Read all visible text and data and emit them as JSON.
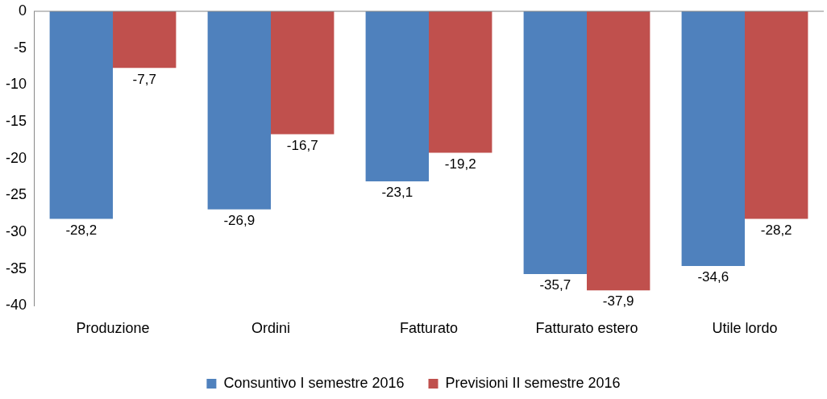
{
  "chart_data": {
    "type": "bar",
    "categories": [
      "Produzione",
      "Ordini",
      "Fatturato",
      "Fatturato estero",
      "Utile lordo"
    ],
    "series": [
      {
        "name": "Consuntivo I semestre 2016",
        "color": "#4f81bd",
        "values": [
          -28.2,
          -26.9,
          -23.1,
          -35.7,
          -34.6
        ],
        "value_labels": [
          "-28,2",
          "-26,9",
          "-23,1",
          "-35,7",
          "-34,6"
        ]
      },
      {
        "name": "Previsioni II semestre 2016",
        "color": "#c0504d",
        "values": [
          -7.7,
          -16.7,
          -19.2,
          -37.9,
          -28.2
        ],
        "value_labels": [
          "-7,7",
          "-16,7",
          "-19,2",
          "-37,9",
          "-28,2"
        ]
      }
    ],
    "ylim": [
      -40,
      0
    ],
    "yticks": [
      -40,
      -35,
      -30,
      -25,
      -20,
      -15,
      -10,
      -5,
      0
    ],
    "grid": false,
    "legend": "bottom"
  }
}
